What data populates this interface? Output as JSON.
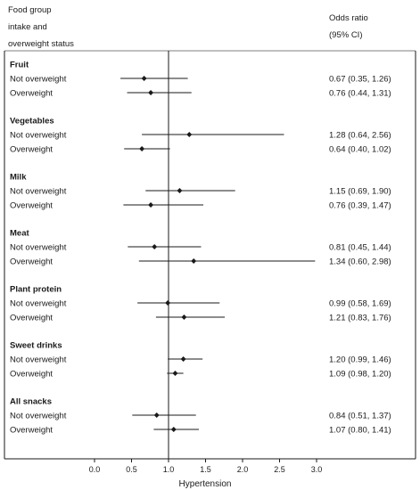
{
  "header": {
    "left_lines": [
      "Food group",
      "intake and",
      "overweight status"
    ],
    "right_lines": [
      "Odds ratio",
      "(95% CI)"
    ]
  },
  "chart_data": {
    "type": "forest",
    "xlabel": "Hypertension",
    "xlim": [
      0.0,
      3.0
    ],
    "xticks": [
      0.0,
      0.5,
      1.0,
      1.5,
      2.0,
      2.5,
      3.0
    ],
    "xtick_labels": [
      "0.0",
      "0.5",
      "1.0",
      "1.5",
      "2.0",
      "2.5",
      "3.0"
    ],
    "reference_line": 1.0,
    "groups": [
      {
        "name": "Fruit",
        "rows": [
          {
            "label": "Not overweight",
            "or": 0.67,
            "lo": 0.35,
            "hi": 1.26,
            "ci_text": "0.67 (0.35, 1.26)"
          },
          {
            "label": "Overweight",
            "or": 0.76,
            "lo": 0.44,
            "hi": 1.31,
            "ci_text": "0.76 (0.44, 1.31)"
          }
        ]
      },
      {
        "name": "Vegetables",
        "rows": [
          {
            "label": "Not overweight",
            "or": 1.28,
            "lo": 0.64,
            "hi": 2.56,
            "ci_text": "1.28 (0.64, 2.56)"
          },
          {
            "label": "Overweight",
            "or": 0.64,
            "lo": 0.4,
            "hi": 1.02,
            "ci_text": "0.64 (0.40, 1.02)"
          }
        ]
      },
      {
        "name": "Milk",
        "rows": [
          {
            "label": "Not overweight",
            "or": 1.15,
            "lo": 0.69,
            "hi": 1.9,
            "ci_text": "1.15 (0.69, 1.90)"
          },
          {
            "label": "Overweight",
            "or": 0.76,
            "lo": 0.39,
            "hi": 1.47,
            "ci_text": "0.76 (0.39, 1.47)"
          }
        ]
      },
      {
        "name": "Meat",
        "rows": [
          {
            "label": "Not overweight",
            "or": 0.81,
            "lo": 0.45,
            "hi": 1.44,
            "ci_text": "0.81 (0.45, 1.44)"
          },
          {
            "label": "Overweight",
            "or": 1.34,
            "lo": 0.6,
            "hi": 2.98,
            "ci_text": "1.34 (0.60, 2.98)"
          }
        ]
      },
      {
        "name": "Plant protein",
        "rows": [
          {
            "label": "Not overweight",
            "or": 0.99,
            "lo": 0.58,
            "hi": 1.69,
            "ci_text": "0.99 (0.58, 1.69)"
          },
          {
            "label": "Overweight",
            "or": 1.21,
            "lo": 0.83,
            "hi": 1.76,
            "ci_text": "1.21 (0.83, 1.76)"
          }
        ]
      },
      {
        "name": "Sweet drinks",
        "rows": [
          {
            "label": "Not overweight",
            "or": 1.2,
            "lo": 0.99,
            "hi": 1.46,
            "ci_text": "1.20 (0.99, 1.46)"
          },
          {
            "label": "Overweight",
            "or": 1.09,
            "lo": 0.98,
            "hi": 1.2,
            "ci_text": "1.09 (0.98, 1.20)"
          }
        ]
      },
      {
        "name": "All snacks",
        "rows": [
          {
            "label": "Not overweight",
            "or": 0.84,
            "lo": 0.51,
            "hi": 1.37,
            "ci_text": "0.84 (0.51, 1.37)"
          },
          {
            "label": "Overweight",
            "or": 1.07,
            "lo": 0.8,
            "hi": 1.41,
            "ci_text": "1.07 (0.80, 1.41)"
          }
        ]
      }
    ]
  }
}
